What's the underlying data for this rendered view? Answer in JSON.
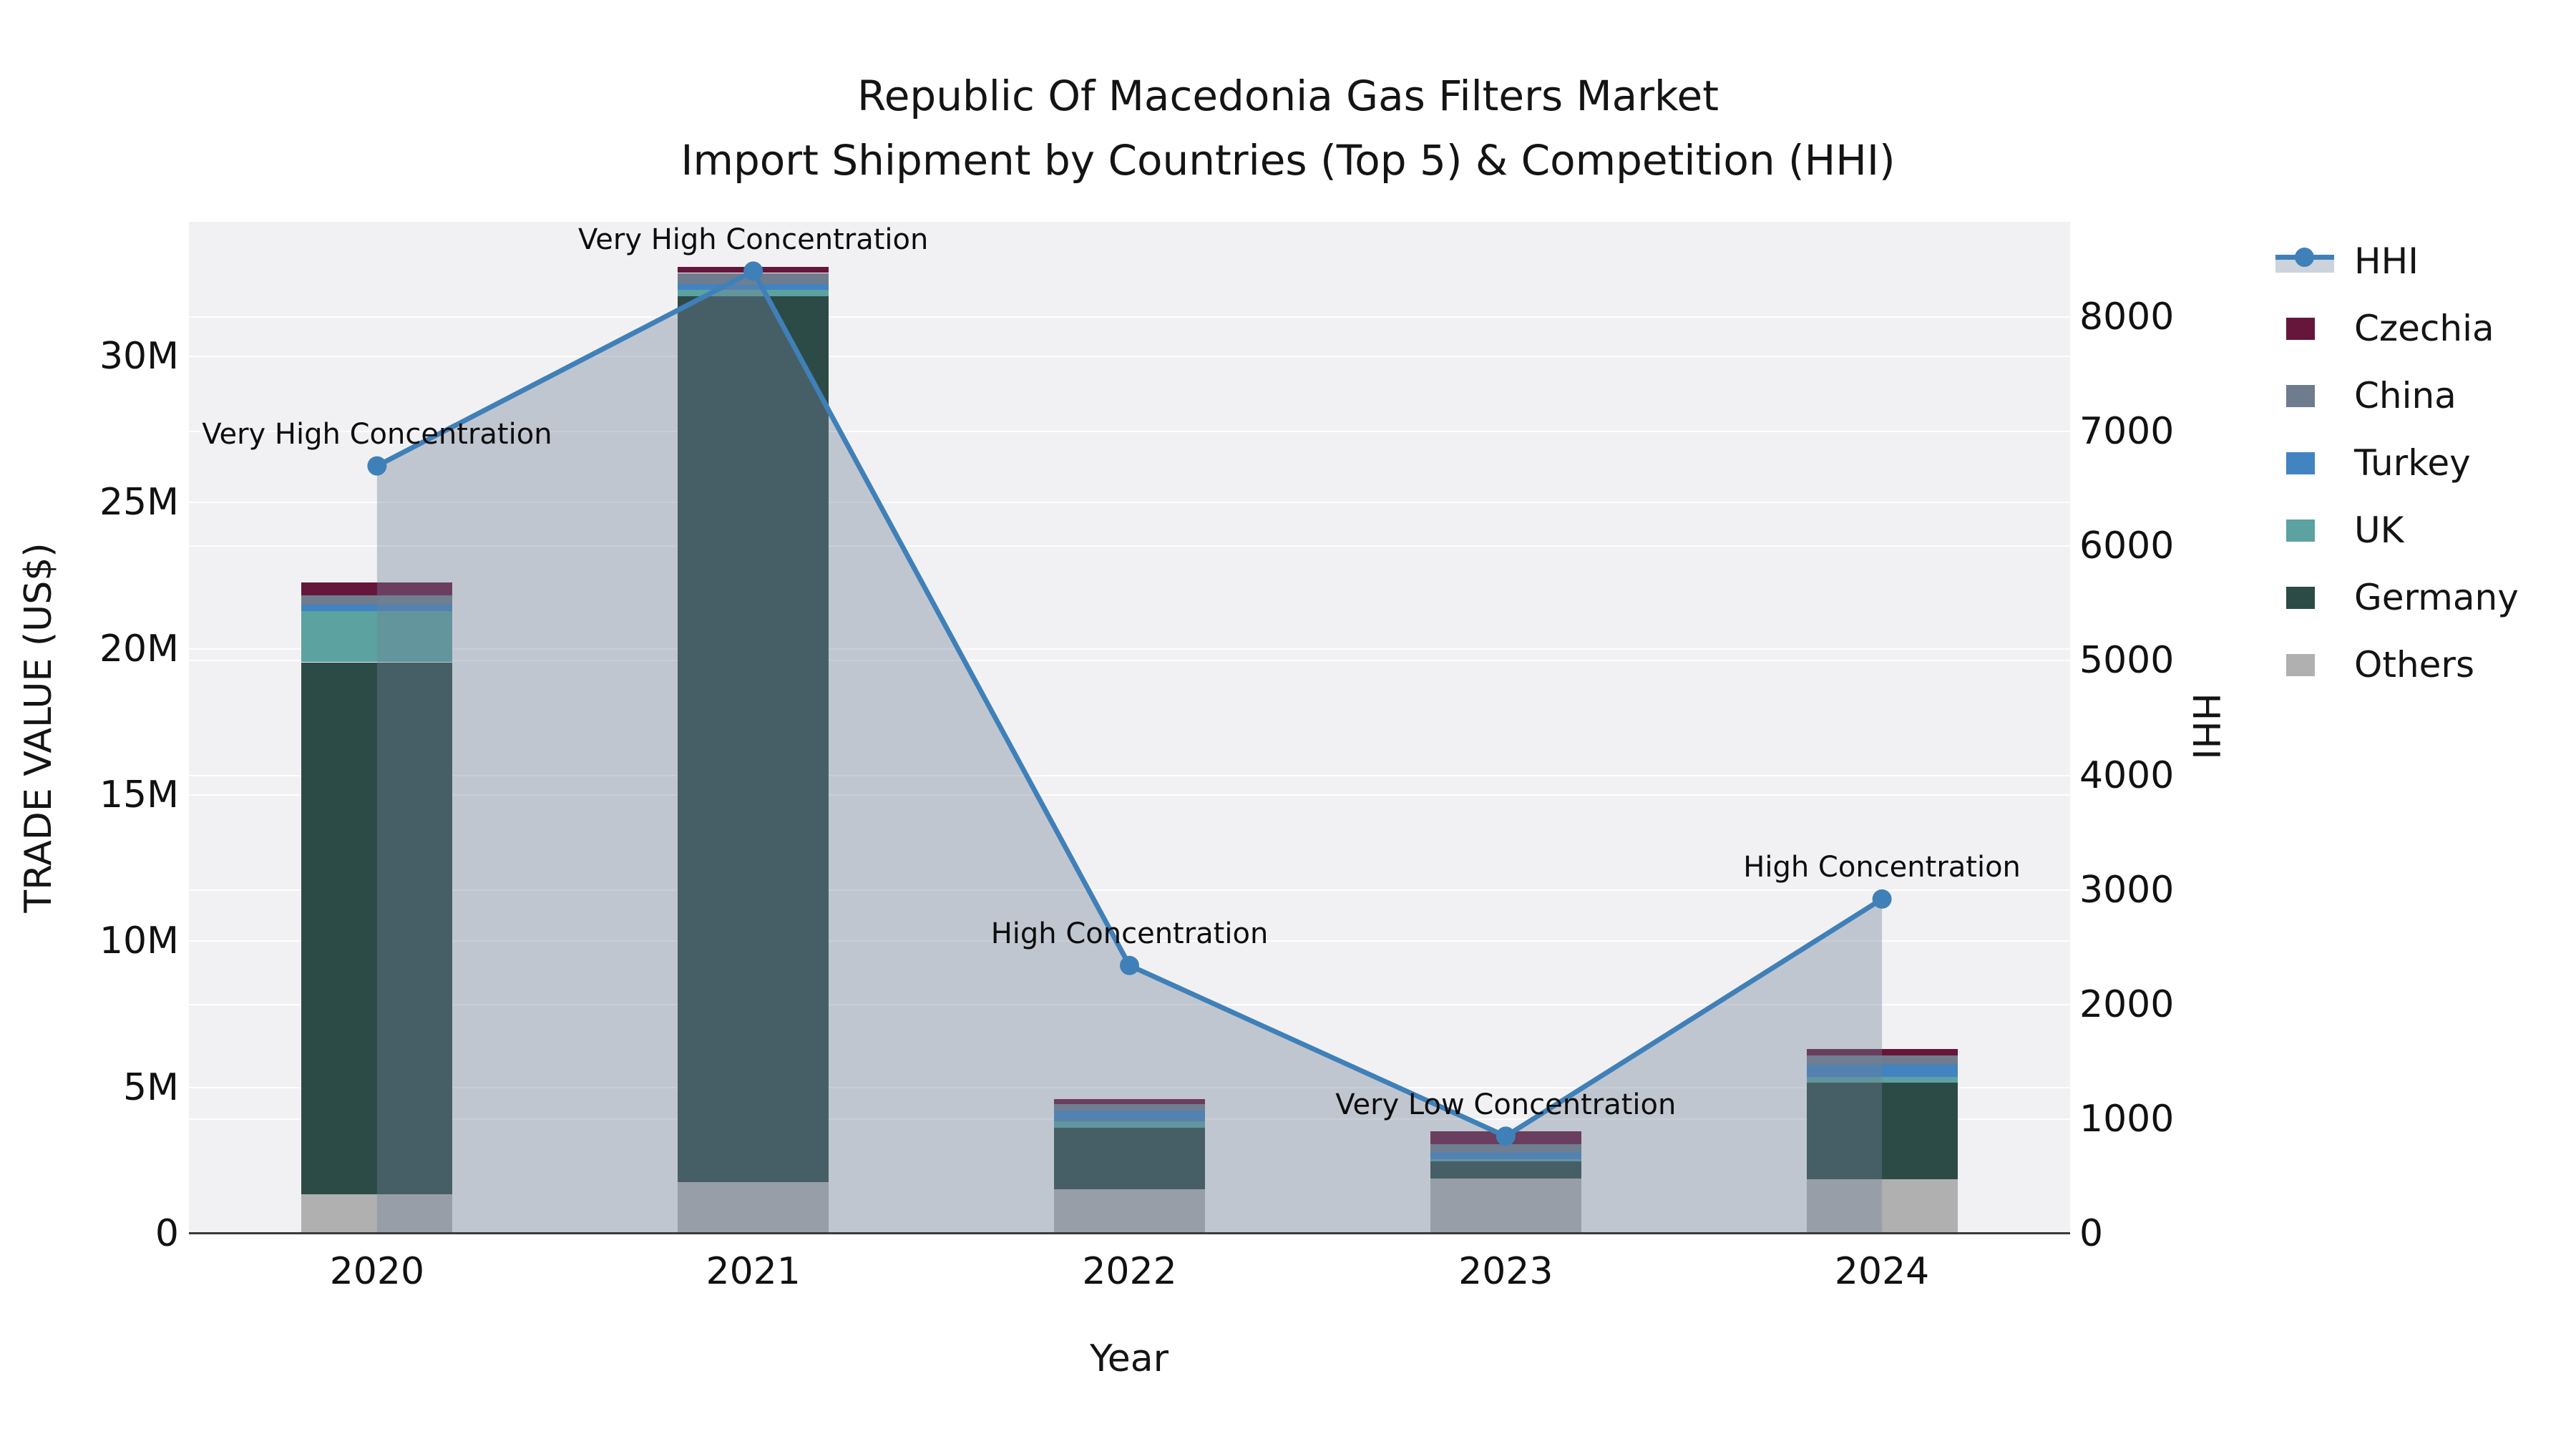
{
  "title": {
    "line1": "Republic Of Macedonia Gas Filters Market",
    "line2": "Import Shipment by Countries (Top 5) & Competition (HHI)"
  },
  "chart_data": {
    "type": "bar",
    "subtype": "stacked-bars-with-line-overlay",
    "unit": "M US$",
    "categories": [
      "2020",
      "2021",
      "2022",
      "2023",
      "2024"
    ],
    "series": [
      {
        "name": "Others",
        "color": "#b0b0b0",
        "values": [
          1.34,
          1.76,
          1.52,
          1.88,
          1.86
        ]
      },
      {
        "name": "Germany",
        "color": "#2c4b47",
        "values": [
          18.2,
          30.3,
          2.1,
          0.59,
          3.3
        ]
      },
      {
        "name": "UK",
        "color": "#5ba2a1",
        "values": [
          1.76,
          0.22,
          0.22,
          0.07,
          0.2
        ]
      },
      {
        "name": "Turkey",
        "color": "#4283c1",
        "values": [
          0.2,
          0.2,
          0.37,
          0.24,
          0.42
        ]
      },
      {
        "name": "China",
        "color": "#6e7c8d",
        "values": [
          0.32,
          0.37,
          0.22,
          0.29,
          0.32
        ]
      },
      {
        "name": "Czechia",
        "color": "#66163a",
        "values": [
          0.46,
          0.2,
          0.17,
          0.44,
          0.22
        ]
      }
    ],
    "line_series": {
      "name": "HHI",
      "color": "#4080b8",
      "fill_color": "rgba(112,128,152,0.38)",
      "values": [
        6700,
        8400,
        2340,
        850,
        2920
      ]
    },
    "annotations": [
      "Very High Concentration",
      "Very High Concentration",
      "High Concentration",
      "Very Low Concentration",
      "High Concentration"
    ],
    "left_axis": {
      "label": "TRADE VALUE (US$)",
      "tick_labels": [
        "0",
        "5M",
        "10M",
        "15M",
        "20M",
        "25M",
        "30M"
      ],
      "tick_values": [
        0,
        5,
        10,
        15,
        20,
        25,
        30
      ],
      "range_max": 34.6
    },
    "right_axis": {
      "label": "HHI",
      "tick_labels": [
        "0",
        "1000",
        "2000",
        "3000",
        "4000",
        "5000",
        "6000",
        "7000",
        "8000"
      ],
      "tick_values": [
        0,
        1000,
        2000,
        3000,
        4000,
        5000,
        6000,
        7000,
        8000
      ],
      "range_max": 8830
    },
    "x_axis": {
      "label": "Year"
    },
    "grid": true,
    "legend_position": "right"
  },
  "legend": {
    "items": [
      {
        "label": "HHI",
        "type": "line"
      },
      {
        "label": "Czechia",
        "type": "patch",
        "color": "#66163a"
      },
      {
        "label": "China",
        "type": "patch",
        "color": "#6e7c8d"
      },
      {
        "label": "Turkey",
        "type": "patch",
        "color": "#4283c1"
      },
      {
        "label": "UK",
        "type": "patch",
        "color": "#5ba2a1"
      },
      {
        "label": "Germany",
        "type": "patch",
        "color": "#2c4b47"
      },
      {
        "label": "Others",
        "type": "patch",
        "color": "#b0b0b0"
      }
    ]
  }
}
